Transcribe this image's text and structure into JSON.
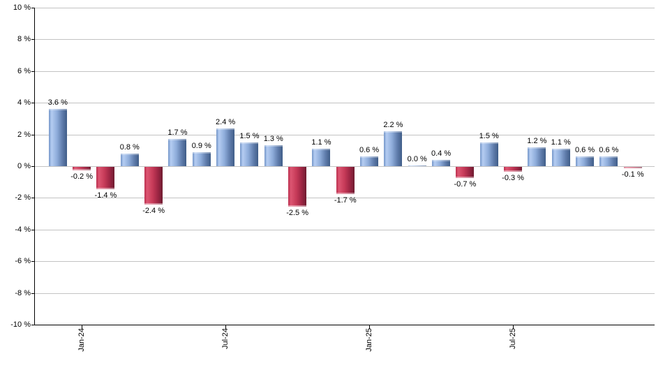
{
  "chart_data": {
    "type": "bar",
    "title": "",
    "unit": "%",
    "values": [
      3.6,
      -0.2,
      -1.4,
      0.8,
      -2.4,
      1.7,
      0.9,
      2.4,
      1.5,
      1.3,
      -2.5,
      1.1,
      -1.7,
      0.6,
      2.2,
      0.0,
      0.4,
      -0.7,
      1.5,
      -0.3,
      1.2,
      1.1,
      0.6,
      0.6,
      -0.1
    ],
    "bar_labels": [
      "3.6 %",
      "-0.2 %",
      "-1.4 %",
      "0.8 %",
      "-2.4 %",
      "1.7 %",
      "0.9 %",
      "2.4 %",
      "1.5 %",
      "1.3 %",
      "-2.5 %",
      "1.1 %",
      "-1.7 %",
      "0.6 %",
      "2.2 %",
      "0.0 %",
      "0.4 %",
      "-0.7 %",
      "1.5 %",
      "-0.3 %",
      "1.2 %",
      "1.1 %",
      "0.6 %",
      "0.6 %",
      "-0.1 %"
    ],
    "x_ticks": [
      {
        "index": 1,
        "label": "Jan-24"
      },
      {
        "index": 7,
        "label": "Jul-24"
      },
      {
        "index": 13,
        "label": "Jan-25"
      },
      {
        "index": 19,
        "label": "Jul-25"
      }
    ],
    "y_ticks": [
      {
        "value": 10,
        "label": "10 %"
      },
      {
        "value": 8,
        "label": "8 %"
      },
      {
        "value": 6,
        "label": "6 %"
      },
      {
        "value": 4,
        "label": "4 %"
      },
      {
        "value": 2,
        "label": "2 %"
      },
      {
        "value": 0,
        "label": "0 %"
      },
      {
        "value": -2,
        "label": "-2 %"
      },
      {
        "value": -4,
        "label": "-4 %"
      },
      {
        "value": -6,
        "label": "-6 %"
      },
      {
        "value": -8,
        "label": "-8 %"
      },
      {
        "value": -10,
        "label": "-10 %"
      }
    ],
    "ylim": [
      -10,
      10
    ],
    "grid": true,
    "legend": "none",
    "colors": {
      "positive_bar": "#6d8fc2",
      "negative_bar": "#c23352",
      "gridline": "#c3c3c3",
      "axis": "#000000",
      "text": "#000000",
      "background": "#ffffff"
    }
  }
}
